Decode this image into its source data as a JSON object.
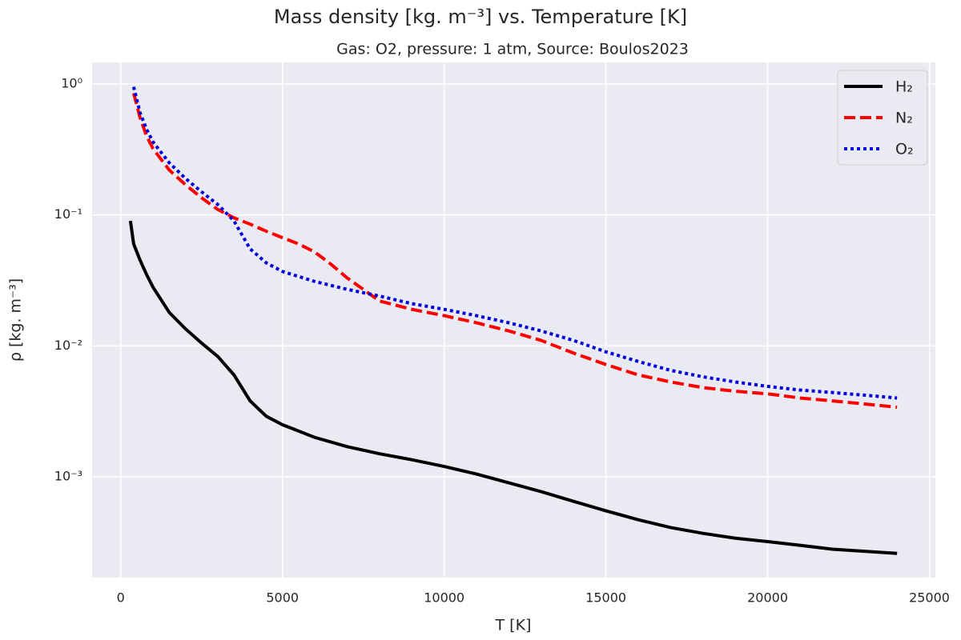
{
  "chart_data": {
    "type": "line",
    "title": "Mass density [kg. m⁻³] vs. Temperature [K]",
    "subtitle": "Gas: O2, pressure: 1 atm, Source: Boulos2023",
    "xlabel": "T [K]",
    "ylabel": "ρ [kg. m⁻³]",
    "xlim": [
      -885,
      25185
    ],
    "xticks": [
      0,
      5000,
      10000,
      15000,
      20000,
      25000
    ],
    "ylim": [
      0.00017,
      1.46
    ],
    "yscale": "log",
    "yticks": [
      {
        "value": 1,
        "label": "10⁰"
      },
      {
        "value": 0.1,
        "label": "10⁻¹"
      },
      {
        "value": 0.01,
        "label": "10⁻²"
      },
      {
        "value": 0.001,
        "label": "10⁻³"
      }
    ],
    "grid": true,
    "legend_loc": "upper right",
    "series": [
      {
        "name": "H₂",
        "color": "#000000",
        "linestyle": "solid",
        "x": [
          300,
          400,
          600,
          800,
          1000,
          1500,
          2000,
          2500,
          3000,
          3500,
          4000,
          4500,
          5000,
          6000,
          7000,
          8000,
          9000,
          10000,
          11000,
          12000,
          13000,
          14000,
          15000,
          16000,
          17000,
          18000,
          19000,
          20000,
          21000,
          22000,
          23000,
          24000
        ],
        "values": [
          0.09,
          0.06,
          0.045,
          0.035,
          0.028,
          0.018,
          0.0135,
          0.0105,
          0.0083,
          0.006,
          0.0038,
          0.0029,
          0.0025,
          0.002,
          0.0017,
          0.0015,
          0.00135,
          0.0012,
          0.00105,
          0.0009,
          0.00077,
          0.00065,
          0.00055,
          0.00047,
          0.00041,
          0.00037,
          0.00034,
          0.00032,
          0.0003,
          0.00028,
          0.00027,
          0.00026
        ]
      },
      {
        "name": "N₂",
        "color": "#ff0000",
        "linestyle": "dashed",
        "x": [
          400,
          600,
          800,
          1000,
          1500,
          2000,
          2500,
          3000,
          3500,
          4000,
          4500,
          5000,
          5500,
          6000,
          6500,
          7000,
          7500,
          8000,
          9000,
          10000,
          11000,
          12000,
          13000,
          14000,
          15000,
          16000,
          17000,
          18000,
          19000,
          20000,
          21000,
          22000,
          23000,
          24000
        ],
        "values": [
          0.85,
          0.55,
          0.4,
          0.32,
          0.22,
          0.17,
          0.135,
          0.11,
          0.095,
          0.085,
          0.075,
          0.067,
          0.06,
          0.052,
          0.042,
          0.033,
          0.027,
          0.022,
          0.019,
          0.017,
          0.015,
          0.013,
          0.011,
          0.0088,
          0.0072,
          0.006,
          0.0053,
          0.0048,
          0.0045,
          0.0043,
          0.004,
          0.0038,
          0.0036,
          0.0034
        ]
      },
      {
        "name": "O₂",
        "color": "#0000dd",
        "linestyle": "dotted",
        "x": [
          400,
          600,
          800,
          1000,
          1500,
          2000,
          2500,
          3000,
          3500,
          4000,
          4500,
          5000,
          6000,
          7000,
          8000,
          9000,
          10000,
          11000,
          12000,
          13000,
          14000,
          15000,
          16000,
          17000,
          18000,
          19000,
          20000,
          21000,
          22000,
          23000,
          24000
        ],
        "values": [
          0.95,
          0.6,
          0.45,
          0.36,
          0.25,
          0.19,
          0.15,
          0.12,
          0.09,
          0.055,
          0.043,
          0.037,
          0.031,
          0.027,
          0.024,
          0.021,
          0.019,
          0.017,
          0.015,
          0.013,
          0.011,
          0.009,
          0.0076,
          0.0065,
          0.0058,
          0.0053,
          0.0049,
          0.0046,
          0.0044,
          0.0042,
          0.004
        ]
      }
    ]
  }
}
